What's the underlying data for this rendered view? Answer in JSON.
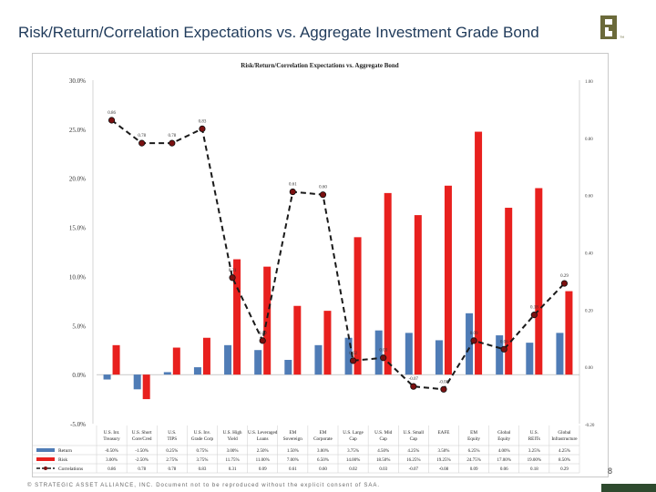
{
  "slide": {
    "title": "Risk/Return/Correlation Expectations vs. Aggregate Investment Grade Bond",
    "footer": "© STRATEGIC ASSET ALLIANCE, INC. Document not to be reproduced without the explicit consent of SAA.",
    "page_number": "8"
  },
  "colors": {
    "return": "#4f7cb6",
    "risk": "#e8201e",
    "correlation": "#1a1a1a",
    "title": "#1f3a5a"
  },
  "chart_data": {
    "type": "bar",
    "title": "Risk/Return/Correlation Expectations vs. Aggregate Bond",
    "categories": [
      "U.S. Int. Treasury",
      "U.S. Short Core/Cred",
      "U.S. TIPS",
      "U.S. Inv. Grade Corp",
      "U.S. High Yield",
      "U.S. Leveraged Loans",
      "EM Sovereign",
      "EM Corporate",
      "U.S. Large Cap",
      "U.S. Mid Cap",
      "U.S. Small Cap",
      "EAFE",
      "EM Equity",
      "Global Equity",
      "U.S. REITs",
      "Global Infrastructure"
    ],
    "left_axis": {
      "ticks": [
        "30.0%",
        "25.0%",
        "20.0%",
        "15.0%",
        "10.0%",
        "5.0%",
        "0.0%",
        "-5.0%"
      ],
      "ylim": [
        -5,
        30
      ]
    },
    "right_axis": {
      "ticks": [
        "1.00",
        "0.80",
        "0.60",
        "0.40",
        "0.20",
        "0.00",
        "-0.20"
      ],
      "ylim": [
        -0.2,
        1.0
      ]
    },
    "series": [
      {
        "name": "Return",
        "axis": "left",
        "type": "bar",
        "values": [
          -0.5,
          -1.5,
          0.25,
          0.75,
          3.0,
          2.5,
          1.5,
          3.0,
          3.75,
          4.5,
          4.25,
          3.5,
          6.25,
          4.0,
          3.25,
          4.25
        ],
        "labels": [
          "-0.50%",
          "-1.50%",
          "0.25%",
          "0.75%",
          "3.00%",
          "2.50%",
          "1.50%",
          "3.00%",
          "3.75%",
          "4.50%",
          "4.25%",
          "3.50%",
          "6.25%",
          "4.00%",
          "3.25%",
          "4.25%"
        ]
      },
      {
        "name": "Risk",
        "axis": "left",
        "type": "bar",
        "values": [
          3.0,
          -2.5,
          2.75,
          3.75,
          11.75,
          11.0,
          7.0,
          6.5,
          14.0,
          18.5,
          16.25,
          19.25,
          24.75,
          17.0,
          19.0,
          8.5
        ],
        "labels": [
          "3.00%",
          "-2.50%",
          "2.75%",
          "3.75%",
          "11.75%",
          "11.00%",
          "7.00%",
          "6.50%",
          "14.00%",
          "18.50%",
          "16.25%",
          "19.25%",
          "24.75%",
          "17.00%",
          "19.00%",
          "8.50%"
        ]
      },
      {
        "name": "Correlations",
        "axis": "right",
        "type": "line",
        "values": [
          0.86,
          0.78,
          0.78,
          0.83,
          0.31,
          0.09,
          0.61,
          0.6,
          0.02,
          0.03,
          -0.07,
          -0.08,
          0.09,
          0.06,
          0.18,
          0.29
        ],
        "labels": [
          "0.86",
          "0.78",
          "0.78",
          "0.83",
          "0.31",
          "0.09",
          "0.61",
          "0.60",
          "0.02",
          "0.03",
          "-0.07",
          "-0.08",
          "0.09",
          "0.06",
          "0.18",
          "0.29"
        ]
      }
    ]
  }
}
